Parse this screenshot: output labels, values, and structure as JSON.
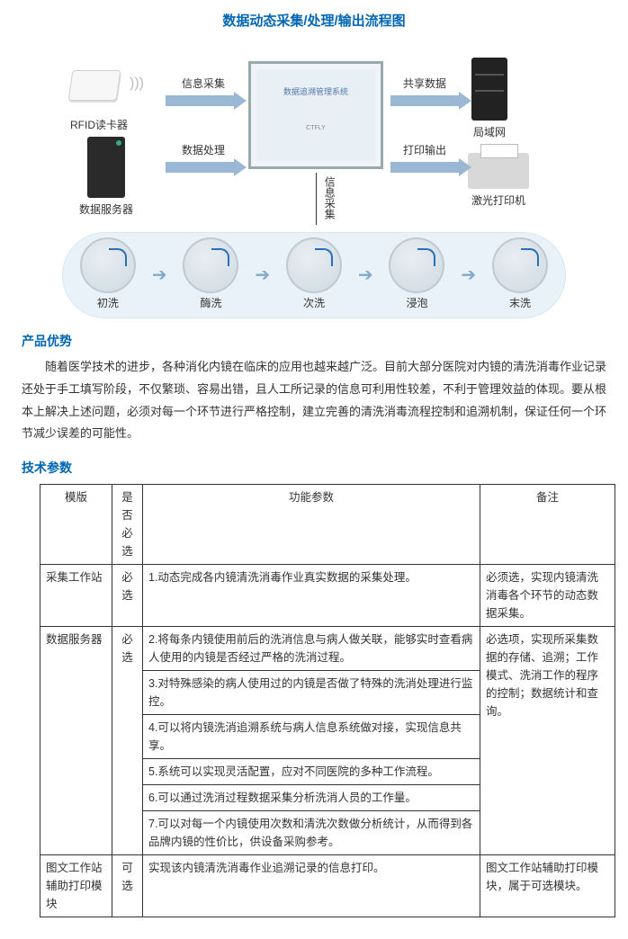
{
  "diagram": {
    "title": "数据动态采集/处理/输出流程图",
    "colors": {
      "title": "#0066b3",
      "arrow_fill": "#9ab8d4",
      "strip_bg": "#eaf2f9",
      "strip_border": "#d6e6f0",
      "step_arrow": "#7fa9cd"
    },
    "nodes": {
      "rfid": {
        "label": "RFID读卡器"
      },
      "server": {
        "label": "数据服务器"
      },
      "monitor_title": "数据追溯管理系统",
      "lan": {
        "label": "局域网"
      },
      "printer": {
        "label": "激光打印机"
      }
    },
    "arrows": {
      "rfid_to_monitor": {
        "label": "信息采集",
        "dir": "right"
      },
      "server_to_monitor": {
        "label": "数据处理",
        "dir": "right"
      },
      "monitor_to_lan": {
        "label": "共享数据",
        "dir": "right"
      },
      "monitor_to_printer": {
        "label": "打印输出",
        "dir": "right"
      },
      "monitor_to_strip": {
        "label": "信息采集",
        "dir": "down"
      }
    },
    "wash_steps": [
      {
        "label": "初洗"
      },
      {
        "label": "酶洗"
      },
      {
        "label": "次洗"
      },
      {
        "label": "浸泡"
      },
      {
        "label": "末洗"
      }
    ]
  },
  "advantage": {
    "heading": "产品优势",
    "paragraph": "随着医学技术的进步，各种消化内镜在临床的应用也越来越广泛。目前大部分医院对内镜的清洗消毒作业记录还处于手工填写阶段，不仅繁琐、容易出错，且人工所记录的信息可利用性较差，不利于管理效益的体现。要从根本上解决上述问题，必须对每一个环节进行严格控制，建立完善的清洗消毒流程控制和追溯机制，保证任何一个环节减少误差的可能性。"
  },
  "spec": {
    "heading": "技术参数",
    "columns": [
      "模版",
      "是否必选",
      "功能参数",
      "备注"
    ],
    "rows": [
      {
        "module": "采集工作站",
        "required": "必选",
        "features": [
          "1.动态完成各内镜清洗消毒作业真实数据的采集处理。"
        ],
        "remark": "必须选，实现内镜清洗消毒各个环节的动态数据采集。"
      },
      {
        "module": "数据服务器",
        "required": "必选",
        "features": [
          "2.将每条内镜使用前后的洗消信息与病人做关联，能够实时查看病人使用的内镜是否经过严格的洗消过程。",
          "3.对特殊感染的病人使用过的内镜是否做了特殊的洗消处理进行监控。",
          "4.可以将内镜洗消追溯系统与病人信息系统做对接，实现信息共享。",
          "5.系统可以实现灵活配置，应对不同医院的多种工作流程。",
          "6.可以通过洗消过程数据采集分析洗消人员的工作量。",
          "7.可以对每一个内镜使用次数和清洗次数做分析统计，从而得到各品牌内镜的性价比，供设备采购参考。"
        ],
        "remark": "必选项，实现所采集数据的存储、追溯；工作模式、洗消工作的程序的控制；数据统计和查询。"
      },
      {
        "module": "图文工作站辅助打印模块",
        "required": "可选",
        "features": [
          "实现该内镜清洗消毒作业追溯记录的信息打印。"
        ],
        "remark": "图文工作站辅助打印模块，属于可选模块。"
      }
    ]
  }
}
